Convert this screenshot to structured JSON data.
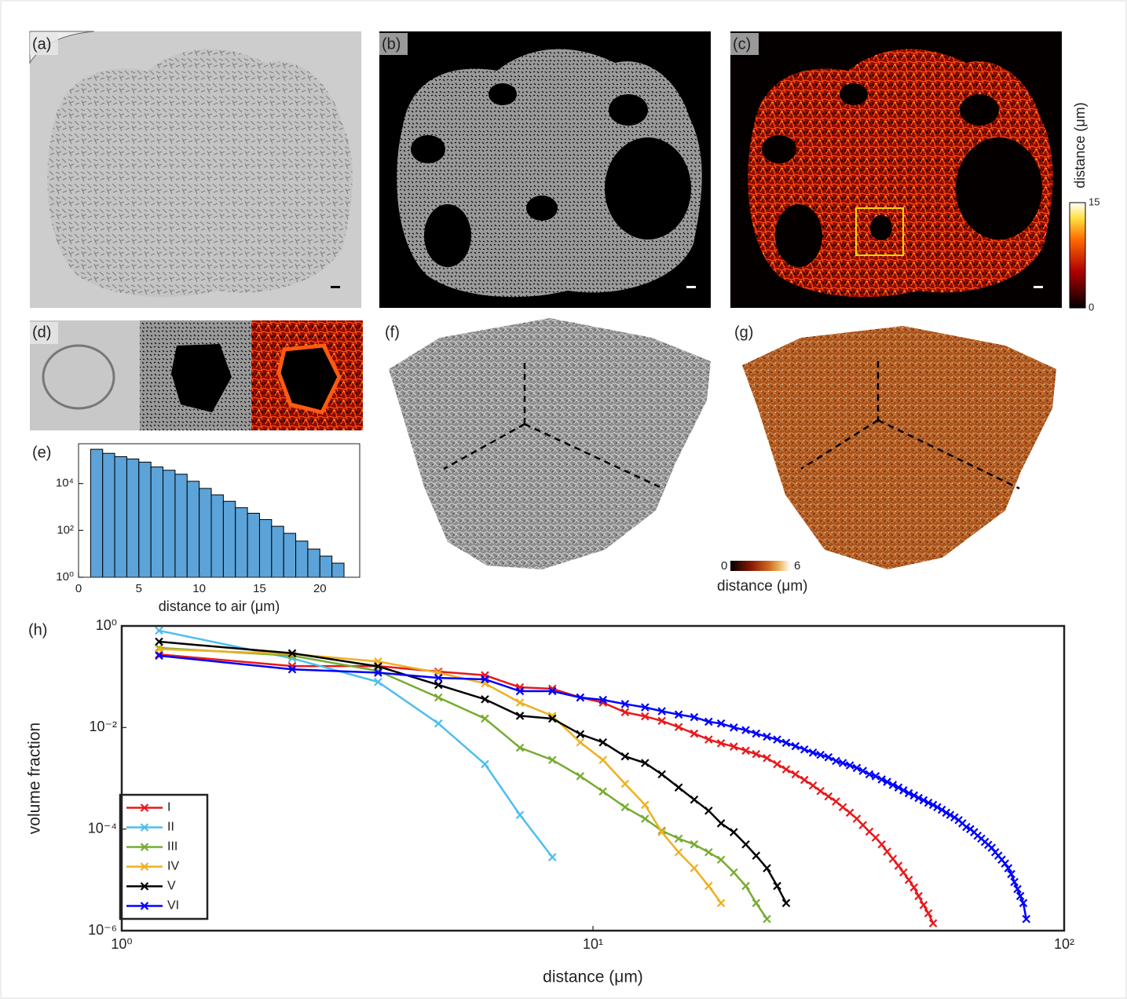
{
  "panels": {
    "a": "(a)",
    "b": "(b)",
    "c": "(c)",
    "d": "(d)",
    "e": "(e)",
    "f": "(f)",
    "g": "(g)",
    "h": "(h)"
  },
  "colorbar_c": {
    "label": "distance (μm)",
    "ticks": [
      0,
      15
    ]
  },
  "colorbar_g": {
    "label": "distance (μm)",
    "ticks": [
      0,
      6
    ]
  },
  "chart_data": [
    {
      "type": "histogram",
      "xlabel": "distance to air (μm)",
      "log_y": true,
      "color": "#5ba3d9",
      "bins": [
        1,
        2,
        3,
        4,
        5,
        6,
        7,
        8,
        9,
        10,
        11,
        12,
        13,
        14,
        15,
        16,
        17,
        18,
        19,
        20,
        21,
        22
      ],
      "values": [
        290000,
        195000,
        140000,
        112000,
        82000,
        51000,
        37000,
        25000,
        12500,
        6200,
        3300,
        1750,
        930,
        540,
        290,
        150,
        75,
        35,
        16,
        8,
        4
      ],
      "xlim": [
        0,
        23.3
      ],
      "xticks": [
        0,
        5,
        10,
        15,
        20
      ],
      "ylim": [
        1,
        500000
      ],
      "yticks": [
        {
          "value": 1,
          "label": "10⁰"
        },
        {
          "value": 100,
          "label": "10²"
        },
        {
          "value": 10000,
          "label": "10⁴"
        }
      ]
    },
    {
      "type": "line",
      "xlabel": "distance (μm)",
      "ylabel": "volume fraction",
      "log_x": true,
      "log_y": true,
      "legend": "lower left",
      "xlim": [
        1,
        100
      ],
      "xticks": [
        {
          "value": 1,
          "label": "10⁰"
        },
        {
          "value": 10,
          "label": "10¹"
        },
        {
          "value": 100,
          "label": "10²"
        }
      ],
      "ylim": [
        1e-06,
        1
      ],
      "yticks": [
        {
          "value": 1e-06,
          "label": "10⁻⁶"
        },
        {
          "value": 0.0001,
          "label": "10⁻⁴"
        },
        {
          "value": 0.01,
          "label": "10⁻²"
        },
        {
          "value": 1,
          "label": "10⁰"
        }
      ],
      "series": [
        {
          "name": "I",
          "color": "#e8191c",
          "x": [
            1.2,
            2.3,
            3.5,
            4.7,
            5.9,
            7.0,
            8.2,
            9.4,
            10.5,
            11.7,
            12.9,
            14.0,
            15.2,
            16.4,
            17.6,
            18.7,
            19.9,
            21.1,
            22.2,
            23.4,
            24.6,
            25.7,
            26.9,
            28.1,
            29.3,
            30.4,
            31.6,
            32.8,
            33.9,
            35.1,
            36.3,
            37.4,
            38.6,
            39.8,
            41.0,
            42.1,
            43.3,
            44.5,
            45.6,
            46.8,
            48.0,
            49.1,
            50.3,
            51.5,
            52.7
          ],
          "values": [
            0.275,
            0.162,
            0.162,
            0.126,
            0.107,
            0.062,
            0.058,
            0.039,
            0.031,
            0.02,
            0.0166,
            0.0135,
            0.0102,
            0.0076,
            0.0058,
            0.0049,
            0.0042,
            0.0035,
            0.003,
            0.0025,
            0.0019,
            0.0015,
            0.0012,
            0.00093,
            0.00072,
            0.00056,
            0.00044,
            0.00035,
            0.00027,
            0.00021,
            0.00016,
            0.00012,
            8.9e-05,
            6.8e-05,
            5e-05,
            3.6e-05,
            2.6e-05,
            1.9e-05,
            1.4e-05,
            1e-05,
            7.1e-06,
            4.8e-06,
            3.2e-06,
            2.2e-06,
            1.4e-06
          ]
        },
        {
          "name": "II",
          "color": "#4dbeee",
          "x": [
            1.2,
            2.3,
            3.5,
            4.7,
            5.9,
            7.0,
            8.2
          ],
          "values": [
            0.81,
            0.23,
            0.079,
            0.012,
            0.0019,
            0.00019,
            2.8e-05
          ]
        },
        {
          "name": "III",
          "color": "#77ac30",
          "x": [
            1.2,
            2.3,
            3.5,
            4.7,
            5.9,
            7.0,
            8.2,
            9.4,
            10.5,
            11.7,
            12.9,
            14.0,
            15.2,
            16.4,
            17.6,
            18.7,
            19.9,
            21.1,
            22.2,
            23.4
          ],
          "values": [
            0.37,
            0.26,
            0.13,
            0.039,
            0.015,
            0.004,
            0.0023,
            0.0011,
            0.00055,
            0.00027,
            0.00016,
            9.3e-05,
            6.5e-05,
            5e-05,
            3.5e-05,
            2.5e-05,
            1.4e-05,
            7.6e-06,
            3.5e-06,
            1.7e-06
          ]
        },
        {
          "name": "IV",
          "color": "#edb120",
          "x": [
            1.2,
            2.3,
            3.5,
            4.7,
            5.9,
            7.0,
            8.2,
            9.4,
            10.5,
            11.7,
            12.9,
            14.0,
            15.2,
            16.4,
            17.6,
            18.7
          ],
          "values": [
            0.35,
            0.28,
            0.2,
            0.12,
            0.074,
            0.031,
            0.017,
            0.0051,
            0.0023,
            0.00078,
            0.0003,
            8.7e-05,
            3.5e-05,
            1.7e-05,
            7.6e-06,
            3.5e-06
          ]
        },
        {
          "name": "V",
          "color": "#000000",
          "x": [
            1.2,
            2.3,
            3.5,
            4.7,
            5.9,
            7.0,
            8.2,
            9.4,
            10.5,
            11.7,
            12.9,
            14.0,
            15.2,
            16.4,
            17.6,
            18.7,
            19.9,
            21.1,
            22.2,
            23.4,
            24.6,
            25.7
          ],
          "values": [
            0.49,
            0.29,
            0.16,
            0.069,
            0.036,
            0.017,
            0.015,
            0.0074,
            0.0051,
            0.0027,
            0.002,
            0.0012,
            0.00066,
            0.00038,
            0.00023,
            0.00013,
            8.7e-05,
            5e-05,
            3e-05,
            1.7e-05,
            7.6e-06,
            3.5e-06
          ]
        },
        {
          "name": "VI",
          "color": "#0000ff",
          "x": [
            1.2,
            2.3,
            3.5,
            4.7,
            5.9,
            7.0,
            8.2,
            9.4,
            10.5,
            11.7,
            12.9,
            14.0,
            15.2,
            16.4,
            17.6,
            18.7,
            19.9,
            21.1,
            22.2,
            23.4,
            24.6,
            25.7,
            26.9,
            28.1,
            29.3,
            30.4,
            31.6,
            32.8,
            33.9,
            35.1,
            36.3,
            37.4,
            38.6,
            39.8,
            41.0,
            42.1,
            43.3,
            44.5,
            45.6,
            46.8,
            48.0,
            49.1,
            50.3,
            51.5,
            52.7,
            53.8,
            55.0,
            56.2,
            57.3,
            58.5,
            59.7,
            60.8,
            62.0,
            63.2,
            64.4,
            65.5,
            66.7,
            67.9,
            69.0,
            70.2,
            71.4,
            72.5,
            73.7,
            74.9,
            76.1,
            77.2,
            78.4,
            79.6,
            80.7,
            81.9,
            83.1
          ],
          "values": [
            0.26,
            0.14,
            0.12,
            0.095,
            0.089,
            0.052,
            0.052,
            0.039,
            0.035,
            0.029,
            0.025,
            0.021,
            0.018,
            0.016,
            0.013,
            0.012,
            0.01,
            0.0089,
            0.0076,
            0.0066,
            0.0058,
            0.005,
            0.0043,
            0.0037,
            0.0032,
            0.0029,
            0.0026,
            0.0022,
            0.002,
            0.0018,
            0.0016,
            0.0014,
            0.0012,
            0.0011,
            0.00095,
            0.00085,
            0.00074,
            0.00066,
            0.00058,
            0.00051,
            0.00046,
            0.00041,
            0.00037,
            0.00033,
            0.0003,
            0.00027,
            0.00024,
            0.00021,
            0.00019,
            0.00017,
            0.00015,
            0.00013,
            0.00011,
            0.0001,
            8.7e-05,
            7.4e-05,
            6.5e-05,
            5.6e-05,
            4.9e-05,
            4.3e-05,
            3.5e-05,
            3e-05,
            2.5e-05,
            2.1e-05,
            1.7e-05,
            1.3e-05,
            9.1e-06,
            6.6e-06,
            4.8e-06,
            3.5e-06,
            1.7e-06
          ]
        }
      ]
    }
  ]
}
